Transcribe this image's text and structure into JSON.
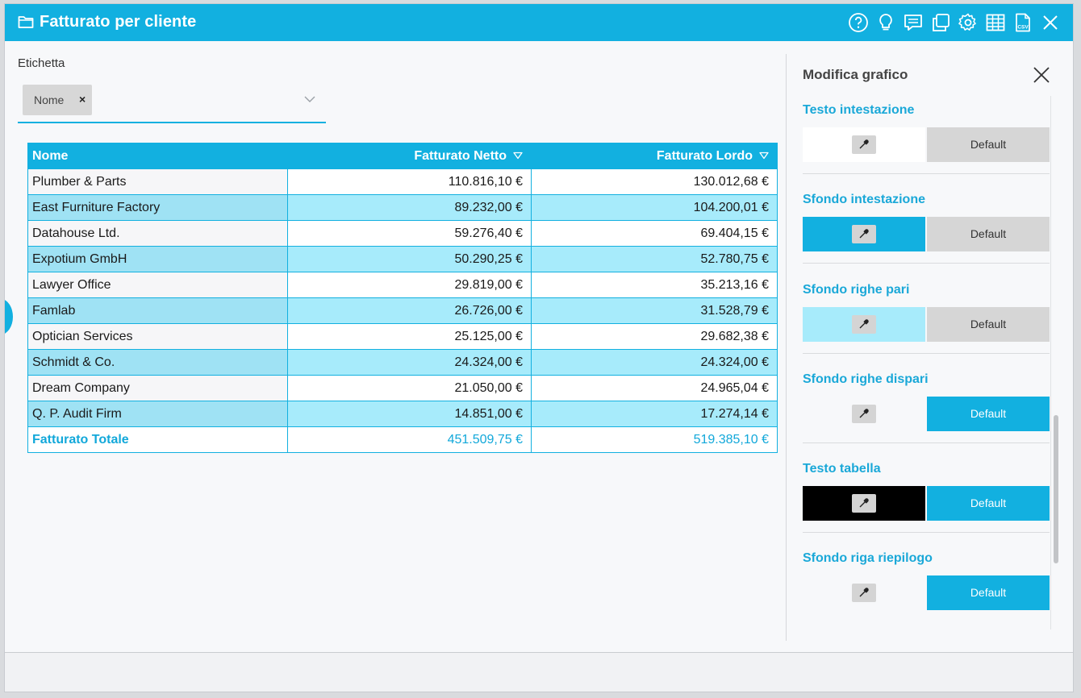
{
  "window": {
    "title": "Fatturato per cliente"
  },
  "toolbar": {
    "icons": [
      "help-icon",
      "lightbulb-icon",
      "comment-icon",
      "copy-icon",
      "gear-icon",
      "table-icon",
      "csv-icon",
      "close-icon"
    ]
  },
  "filter": {
    "label": "Etichetta",
    "chip_label": "Nome",
    "chip_remove": "×"
  },
  "table": {
    "headers": {
      "name": "Nome",
      "net": "Fatturato Netto",
      "gross": "Fatturato Lordo"
    },
    "rows": [
      {
        "name": "Plumber & Parts",
        "net": "110.816,10 €",
        "gross": "130.012,68 €"
      },
      {
        "name": "East Furniture Factory",
        "net": "89.232,00 €",
        "gross": "104.200,01 €"
      },
      {
        "name": "Datahouse Ltd.",
        "net": "59.276,40 €",
        "gross": "69.404,15 €"
      },
      {
        "name": "Expotium GmbH",
        "net": "50.290,25 €",
        "gross": "52.780,75 €"
      },
      {
        "name": "Lawyer Office",
        "net": "29.819,00 €",
        "gross": "35.213,16 €"
      },
      {
        "name": "Famlab",
        "net": "26.726,00 €",
        "gross": "31.528,79 €"
      },
      {
        "name": "Optician Services",
        "net": "25.125,00 €",
        "gross": "29.682,38 €"
      },
      {
        "name": "Schmidt & Co.",
        "net": "24.324,00 €",
        "gross": "24.324,00 €"
      },
      {
        "name": "Dream Company",
        "net": "21.050,00 €",
        "gross": "24.965,04 €"
      },
      {
        "name": "Q. P. Audit Firm",
        "net": "14.851,00 €",
        "gross": "17.274,14 €"
      }
    ],
    "total": {
      "name": "Fatturato Totale",
      "net": "451.509,75 €",
      "gross": "519.385,10 €"
    }
  },
  "panel": {
    "title": "Modifica grafico",
    "options": [
      {
        "label": "Testo intestazione",
        "swatch": "#ffffff",
        "default_label": "Default",
        "default_active": false
      },
      {
        "label": "Sfondo intestazione",
        "swatch": "#12b0e0",
        "default_label": "Default",
        "default_active": false
      },
      {
        "label": "Sfondo righe pari",
        "swatch": "#a7ebfb",
        "default_label": "Default",
        "default_active": false
      },
      {
        "label": "Sfondo righe dispari",
        "swatch": "transparent",
        "default_label": "Default",
        "default_active": true
      },
      {
        "label": "Testo tabella",
        "swatch": "#000000",
        "default_label": "Default",
        "default_active": true
      },
      {
        "label": "Sfondo riga riepilogo",
        "swatch": "transparent",
        "default_label": "Default",
        "default_active": true
      }
    ]
  },
  "colors": {
    "accent": "#12b0e0",
    "row_even": "#a7ebfb",
    "total_text": "#12a8da"
  }
}
